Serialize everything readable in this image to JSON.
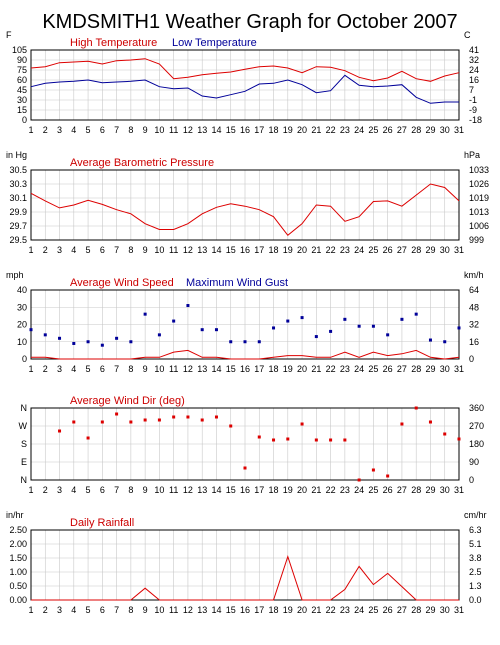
{
  "title": "KMDSMITH1 Weather Graph for October 2007",
  "colors": {
    "red": "#dd0000",
    "blue": "#000099",
    "grid": "#c8c8c8",
    "frame": "#000000"
  },
  "x_days": [
    "1",
    "2",
    "3",
    "4",
    "5",
    "6",
    "7",
    "8",
    "9",
    "10",
    "11",
    "12",
    "13",
    "14",
    "15",
    "16",
    "17",
    "18",
    "19",
    "20",
    "21",
    "22",
    "23",
    "24",
    "25",
    "26",
    "27",
    "28",
    "29",
    "30",
    "31"
  ],
  "chart_data": [
    {
      "type": "line",
      "title": "",
      "left_unit": "F",
      "right_unit": "C",
      "ylim": [
        0,
        105
      ],
      "left_ticks": [
        "105",
        "90",
        "75",
        "60",
        "45",
        "30",
        "15",
        "0"
      ],
      "right_ticks": [
        "41",
        "32",
        "24",
        "16",
        "7",
        "-1",
        "-9",
        "-18"
      ],
      "legend_placement": "top-left",
      "series": [
        {
          "name": "High Temperature",
          "color": "#dd0000",
          "values": [
            78,
            80,
            86,
            87,
            88,
            84,
            89,
            90,
            92,
            84,
            62,
            64,
            68,
            70,
            72,
            76,
            80,
            81,
            78,
            71,
            80,
            79,
            74,
            64,
            59,
            63,
            73,
            62,
            58,
            66,
            71
          ]
        },
        {
          "name": "Low Temperature",
          "color": "#000099",
          "values": [
            50,
            55,
            57,
            58,
            60,
            56,
            57,
            58,
            60,
            50,
            47,
            48,
            36,
            33,
            38,
            43,
            54,
            55,
            60,
            53,
            41,
            44,
            67,
            52,
            50,
            51,
            53,
            34,
            25,
            27,
            27
          ]
        }
      ]
    },
    {
      "type": "line",
      "title": "Average Barometric Pressure",
      "left_unit": "in Hg",
      "right_unit": "hPa",
      "ylim": [
        29.5,
        30.7
      ],
      "left_ticks": [
        "30.5",
        "30.3",
        "30.1",
        "29.9",
        "29.7",
        "29.5"
      ],
      "right_ticks": [
        "1033",
        "1026",
        "1019",
        "1013",
        "1006",
        "999"
      ],
      "series": [
        {
          "name": "Average Barometric Pressure",
          "color": "#dd0000",
          "values": [
            30.3,
            30.17,
            30.05,
            30.1,
            30.18,
            30.11,
            30.02,
            29.95,
            29.78,
            29.68,
            29.68,
            29.78,
            29.95,
            30.06,
            30.12,
            30.08,
            30.02,
            29.9,
            29.58,
            29.78,
            30.1,
            30.08,
            29.82,
            29.9,
            30.16,
            30.17,
            30.08,
            30.27,
            30.46,
            30.4,
            30.17
          ]
        }
      ]
    },
    {
      "type": "line",
      "title": "Average Wind Speed",
      "left_unit": "mph",
      "right_unit": "km/h",
      "ylim": [
        0,
        40
      ],
      "left_ticks": [
        "40",
        "30",
        "20",
        "10",
        "0"
      ],
      "right_ticks": [
        "64",
        "48",
        "32",
        "16",
        "0"
      ],
      "legend_placement": "top-left",
      "series": [
        {
          "name": "Average Wind Speed",
          "color": "#dd0000",
          "values": [
            1,
            1,
            0,
            0,
            0,
            0,
            0,
            0,
            1,
            1,
            4,
            5,
            1,
            1,
            0,
            0,
            0,
            1,
            2,
            2,
            1,
            1,
            4,
            1,
            4,
            2,
            3,
            5,
            1,
            0,
            1
          ]
        },
        {
          "name": "Maximum Wind Gust",
          "color": "#000099",
          "style": "points",
          "values": [
            17,
            14,
            12,
            9,
            10,
            8,
            12,
            10,
            26,
            14,
            22,
            31,
            17,
            17,
            10,
            10,
            10,
            18,
            22,
            24,
            13,
            16,
            23,
            19,
            19,
            14,
            23,
            26,
            11,
            10,
            18
          ]
        }
      ]
    },
    {
      "type": "scatter",
      "title": "Average Wind Dir (deg)",
      "left_unit": "",
      "right_unit": "",
      "ylim": [
        0,
        360
      ],
      "left_ticks": [
        "N",
        "W",
        "S",
        "E",
        "N"
      ],
      "right_ticks": [
        "360",
        "270",
        "180",
        "90",
        "0"
      ],
      "series": [
        {
          "name": "Average Wind Dir (deg)",
          "color": "#dd0000",
          "values": [
            null,
            null,
            245,
            290,
            210,
            290,
            330,
            290,
            300,
            300,
            315,
            315,
            300,
            315,
            270,
            60,
            215,
            200,
            205,
            280,
            200,
            200,
            200,
            0,
            50,
            20,
            280,
            360,
            290,
            230,
            205
          ]
        }
      ]
    },
    {
      "type": "line",
      "title": "Daily Rainfall",
      "left_unit": "in/hr",
      "right_unit": "cm/hr",
      "ylim": [
        0,
        2.5
      ],
      "left_ticks": [
        "2.50",
        "2.00",
        "1.50",
        "1.00",
        "0.50",
        "0.00"
      ],
      "right_ticks": [
        "6.3",
        "5.1",
        "3.8",
        "2.5",
        "1.3",
        "0.0"
      ],
      "series": [
        {
          "name": "Daily Rainfall",
          "color": "#dd0000",
          "values": [
            0,
            0,
            0,
            0,
            0,
            0,
            0,
            0,
            0.42,
            0,
            0,
            0,
            0,
            0,
            0,
            0,
            0,
            0,
            1.55,
            0,
            0,
            0,
            0.38,
            1.2,
            0.55,
            0.95,
            0.48,
            0,
            0,
            0,
            0
          ]
        }
      ]
    }
  ]
}
